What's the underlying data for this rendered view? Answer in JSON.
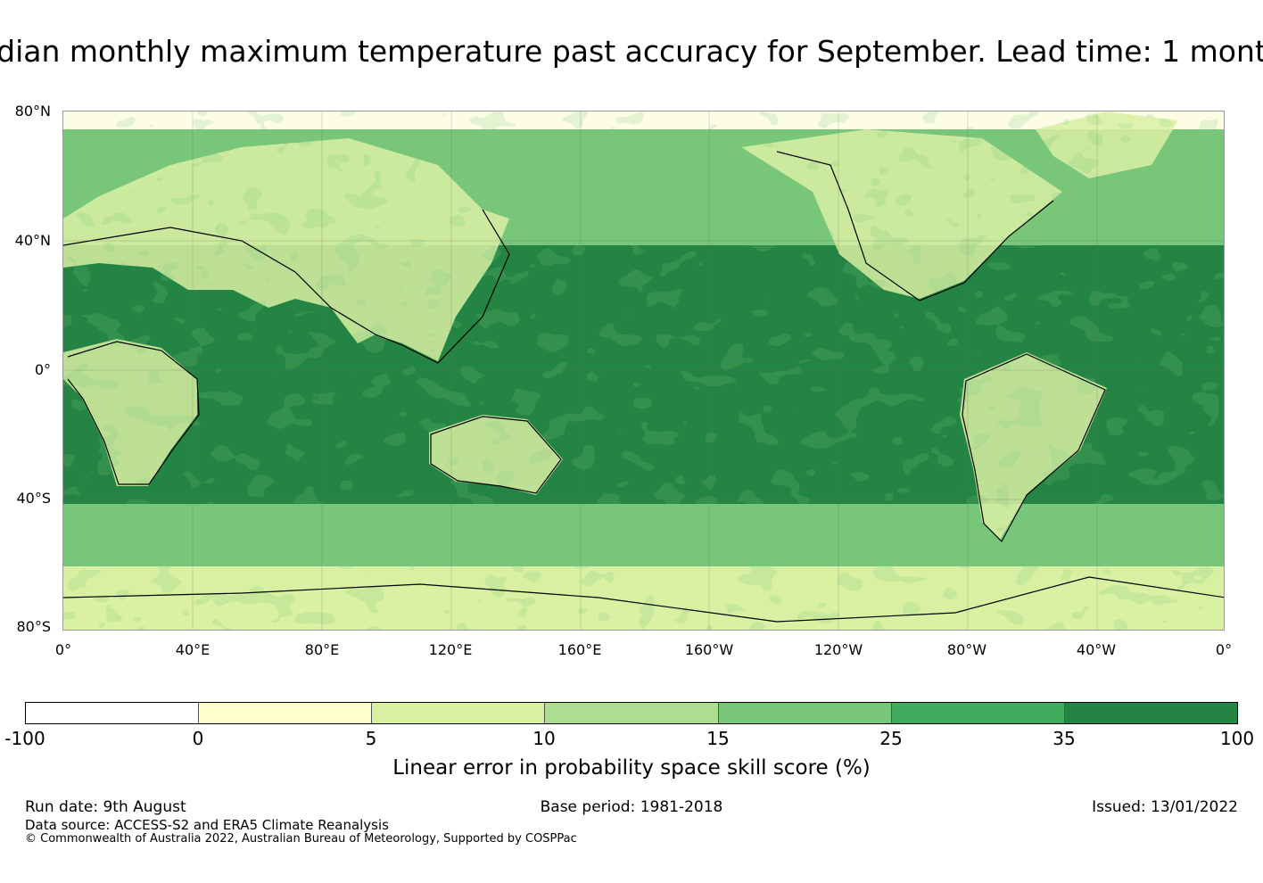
{
  "title": "dian monthly maximum temperature past accuracy for September. Lead time: 1 mont",
  "map": {
    "lat_labels": [
      "80°N",
      "40°N",
      "0°",
      "40°S",
      "80°S"
    ],
    "lon_labels": [
      "0°",
      "40°E",
      "80°E",
      "120°E",
      "160°E",
      "160°W",
      "120°W",
      "80°W",
      "40°W",
      "0°"
    ],
    "gridlines": "on",
    "coastlines": "black outline"
  },
  "colorbar": {
    "tick_labels": [
      "-100",
      "0",
      "5",
      "10",
      "15",
      "25",
      "35",
      "100"
    ],
    "colors": [
      "#ffffff",
      "#ffffcc",
      "#d9f0a3",
      "#addd8e",
      "#78c679",
      "#41ab5d",
      "#238443"
    ],
    "label": "Linear error in probability space skill score (%)"
  },
  "footer": {
    "run_date": "Run date: 9th August",
    "base_period": "Base period: 1981-2018",
    "issued": "Issued: 13/01/2022",
    "data_source": "Data source: ACCESS-S2 and ERA5 Climate Reanalysis",
    "copyright": "© Commonwealth of Australia 2022, Australian Bureau of Meteorology, Supported by COSPPac"
  }
}
